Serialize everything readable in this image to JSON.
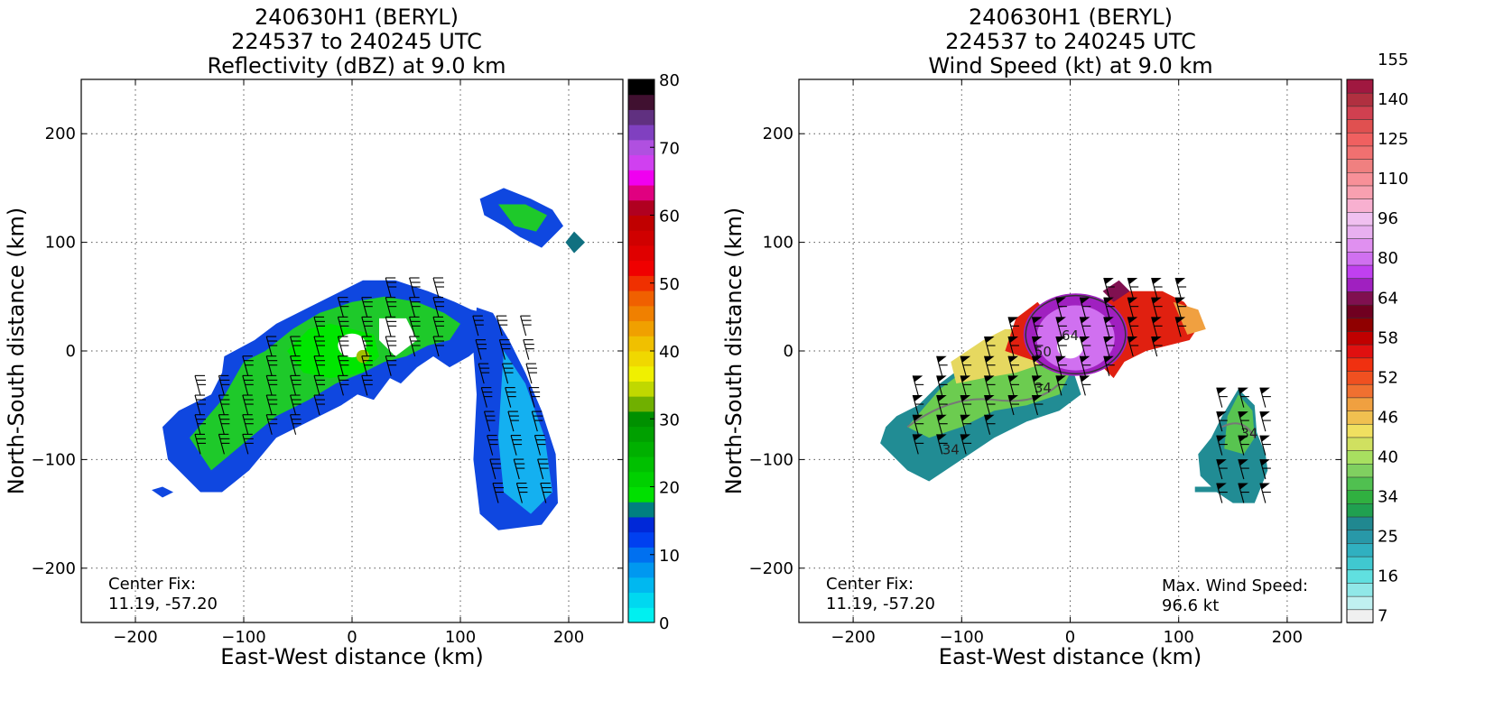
{
  "panels": [
    {
      "title_lines": [
        "240630H1 (BERYL)",
        "224537 to 240245 UTC",
        "Reflectivity (dBZ) at 9.0 km"
      ],
      "center_fix_label": "Center Fix:",
      "center_fix_value": "11.19, -57.20"
    },
    {
      "title_lines": [
        "240630H1 (BERYL)",
        "224537 to 240245 UTC",
        "Wind Speed (kt) at 9.0 km"
      ],
      "center_fix_label": "Center Fix:",
      "center_fix_value": "11.19, -57.20",
      "max_wind_label": "Max. Wind Speed:",
      "max_wind_value": "96.6 kt",
      "contour_labels": [
        "64",
        "50",
        "34",
        "34",
        "34"
      ]
    }
  ],
  "chart_data": [
    {
      "type": "heatmap",
      "title": "240630H1 (BERYL) 224537 to 240245 UTC Reflectivity (dBZ) at 9.0 km",
      "xlabel": "East-West distance (km)",
      "ylabel": "North-South distance (km)",
      "xlim": [
        -250,
        250
      ],
      "ylim": [
        -250,
        250
      ],
      "xticks": [
        -200,
        -100,
        0,
        100,
        200
      ],
      "yticks": [
        -200,
        -100,
        0,
        100,
        200
      ],
      "grid": true,
      "colorbar": {
        "ticks": [
          0,
          10,
          20,
          30,
          40,
          50,
          60,
          70,
          80
        ],
        "colors": [
          "#00f0f0",
          "#00d8f0",
          "#00b8f0",
          "#0098f0",
          "#0070f0",
          "#0040f0",
          "#0028d8",
          "#008080",
          "#00e000",
          "#00d000",
          "#00c000",
          "#00b000",
          "#00a000",
          "#009000",
          "#70b000",
          "#c0d800",
          "#f0f000",
          "#f0d800",
          "#f0c000",
          "#f0a000",
          "#f08000",
          "#f06000",
          "#f03000",
          "#f00000",
          "#e00000",
          "#d00000",
          "#c00000",
          "#b00020",
          "#e00080",
          "#f000f0",
          "#d040f0",
          "#b050e0",
          "#8040c0",
          "#603080",
          "#401030",
          "#000000"
        ]
      },
      "features": [
        "main rainband with eyewall near (0,0)",
        "southeastern band x 110 to 190 km, y -160 to 40 km",
        "northeastern cell near (150,120) km",
        "wind barbs overlaid"
      ]
    },
    {
      "type": "heatmap",
      "title": "240630H1 (BERYL) 224537 to 240245 UTC Wind Speed (kt) at 9.0 km",
      "xlabel": "East-West distance (km)",
      "ylabel": "North-South distance (km)",
      "xlim": [
        -250,
        250
      ],
      "ylim": [
        -250,
        250
      ],
      "xticks": [
        -200,
        -100,
        0,
        100,
        200
      ],
      "yticks": [
        -200,
        -100,
        0,
        100,
        200
      ],
      "grid": true,
      "max_wind_speed_kt": 96.6,
      "colorbar": {
        "ticks": [
          7,
          16,
          25,
          34,
          40,
          46,
          52,
          58,
          64,
          80,
          96,
          110,
          125,
          140,
          155
        ],
        "colors": [
          "#f0f0f0",
          "#c0f0f0",
          "#90e8e8",
          "#60e0e0",
          "#40c8d0",
          "#30b0c0",
          "#2898a8",
          "#208890",
          "#20a050",
          "#30b040",
          "#50c050",
          "#80d060",
          "#a8e060",
          "#d0e060",
          "#f0e060",
          "#f0c050",
          "#f0a040",
          "#f07030",
          "#f05020",
          "#f03010",
          "#e01010",
          "#c00000",
          "#900000",
          "#700020",
          "#801050",
          "#a020c0",
          "#c040f0",
          "#d070f0",
          "#e090f0",
          "#e8b0f0",
          "#f0c0f0",
          "#f8b0d0",
          "#f8a0b0",
          "#f89098",
          "#f08080",
          "#f07070",
          "#f06060",
          "#e05050",
          "#d04050",
          "#b03040",
          "#a01840"
        ]
      },
      "features": [
        "eyewall 64 kt contour near (0,10)",
        "34 kt contours",
        "southeastern cell near (150,-80) km",
        "wind barbs overlaid"
      ]
    }
  ]
}
